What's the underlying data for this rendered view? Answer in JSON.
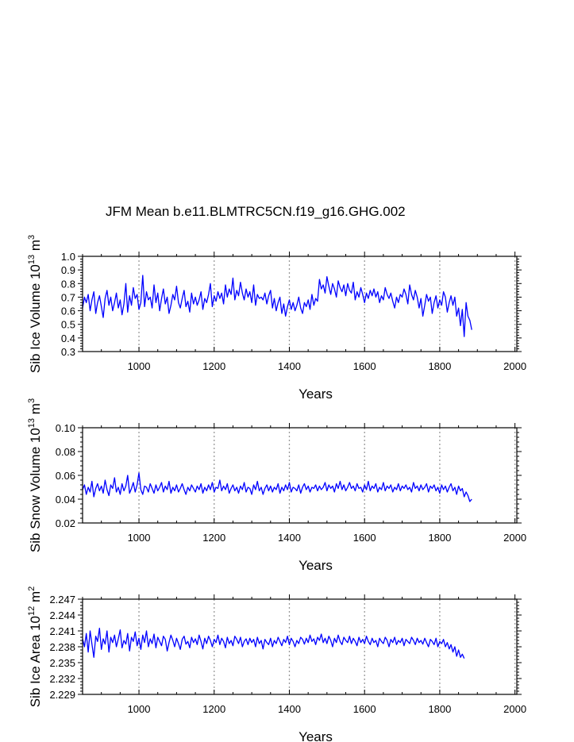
{
  "title": "JFM Mean b.e11.BLMTRC5CN.f19_g16.GHG.002",
  "colors": {
    "series": "#0000ff",
    "axis": "#000000",
    "grid": "#999999"
  },
  "chart_data": [
    {
      "type": "line",
      "xlabel": "Years",
      "ylabel": {
        "prefix": "Sib Ice Volume 10",
        "exponent": "13",
        "unit": "m",
        "unit_exponent": "3"
      },
      "xlim": [
        850,
        2005
      ],
      "ylim": [
        0.3,
        1.0
      ],
      "xticks": [
        1000,
        1200,
        1400,
        1600,
        1800,
        2000
      ],
      "yticks": [
        0.3,
        0.4,
        0.5,
        0.6,
        0.7,
        0.8,
        0.9,
        1.0
      ],
      "ytick_labels": [
        "0.3",
        "0.4",
        "0.5",
        "0.6",
        "0.7",
        "0.8",
        "0.9",
        "1.0"
      ],
      "grid_x": [
        1000,
        1200,
        1400,
        1600,
        1800,
        2000
      ],
      "series": [
        {
          "name": "Sib Ice Volume",
          "x_start": 850,
          "x_step": 5,
          "values": [
            0.62,
            0.7,
            0.66,
            0.72,
            0.6,
            0.68,
            0.74,
            0.58,
            0.66,
            0.71,
            0.63,
            0.55,
            0.69,
            0.75,
            0.64,
            0.7,
            0.6,
            0.66,
            0.73,
            0.62,
            0.68,
            0.57,
            0.65,
            0.8,
            0.59,
            0.71,
            0.64,
            0.77,
            0.69,
            0.72,
            0.61,
            0.66,
            0.86,
            0.63,
            0.74,
            0.68,
            0.7,
            0.62,
            0.79,
            0.66,
            0.73,
            0.6,
            0.69,
            0.76,
            0.65,
            0.7,
            0.58,
            0.64,
            0.72,
            0.68,
            0.78,
            0.66,
            0.62,
            0.69,
            0.75,
            0.63,
            0.67,
            0.59,
            0.73,
            0.65,
            0.7,
            0.64,
            0.68,
            0.74,
            0.61,
            0.69,
            0.66,
            0.72,
            0.8,
            0.63,
            0.71,
            0.67,
            0.74,
            0.69,
            0.73,
            0.65,
            0.79,
            0.7,
            0.76,
            0.72,
            0.84,
            0.68,
            0.75,
            0.71,
            0.81,
            0.73,
            0.68,
            0.76,
            0.7,
            0.74,
            0.66,
            0.79,
            0.64,
            0.72,
            0.69,
            0.7,
            0.68,
            0.73,
            0.65,
            0.71,
            0.75,
            0.62,
            0.69,
            0.6,
            0.66,
            0.7,
            0.58,
            0.65,
            0.56,
            0.63,
            0.68,
            0.61,
            0.66,
            0.6,
            0.64,
            0.7,
            0.62,
            0.58,
            0.66,
            0.63,
            0.68,
            0.61,
            0.72,
            0.64,
            0.69,
            0.67,
            0.83,
            0.76,
            0.79,
            0.73,
            0.85,
            0.78,
            0.72,
            0.8,
            0.76,
            0.7,
            0.82,
            0.77,
            0.74,
            0.79,
            0.71,
            0.8,
            0.75,
            0.73,
            0.81,
            0.68,
            0.74,
            0.7,
            0.77,
            0.72,
            0.66,
            0.73,
            0.69,
            0.75,
            0.71,
            0.76,
            0.7,
            0.74,
            0.66,
            0.71,
            0.68,
            0.77,
            0.72,
            0.69,
            0.73,
            0.67,
            0.62,
            0.7,
            0.66,
            0.72,
            0.7,
            0.76,
            0.72,
            0.65,
            0.79,
            0.72,
            0.68,
            0.75,
            0.7,
            0.62,
            0.69,
            0.56,
            0.64,
            0.72,
            0.67,
            0.7,
            0.58,
            0.66,
            0.71,
            0.62,
            0.68,
            0.64,
            0.74,
            0.7,
            0.59,
            0.66,
            0.71,
            0.64,
            0.7,
            0.56,
            0.62,
            0.49,
            0.61,
            0.41,
            0.66,
            0.56,
            0.53,
            0.46
          ]
        }
      ]
    },
    {
      "type": "line",
      "xlabel": "Years",
      "ylabel": {
        "prefix": "Sib Snow Volume 10",
        "exponent": "13",
        "unit": "m",
        "unit_exponent": "3"
      },
      "xlim": [
        850,
        2005
      ],
      "ylim": [
        0.02,
        0.1
      ],
      "xticks": [
        1000,
        1200,
        1400,
        1600,
        1800,
        2000
      ],
      "yticks": [
        0.02,
        0.04,
        0.06,
        0.08,
        0.1
      ],
      "ytick_labels": [
        "0.02",
        "0.04",
        "0.06",
        "0.08",
        "0.10"
      ],
      "grid_x": [
        1000,
        1200,
        1400,
        1600,
        1800,
        2000
      ],
      "series": [
        {
          "name": "Sib Snow Volume",
          "x_start": 850,
          "x_step": 5,
          "values": [
            0.048,
            0.052,
            0.044,
            0.05,
            0.046,
            0.055,
            0.042,
            0.049,
            0.053,
            0.047,
            0.051,
            0.045,
            0.056,
            0.048,
            0.043,
            0.052,
            0.049,
            0.058,
            0.046,
            0.05,
            0.044,
            0.053,
            0.047,
            0.051,
            0.06,
            0.045,
            0.049,
            0.054,
            0.046,
            0.052,
            0.062,
            0.048,
            0.044,
            0.051,
            0.05,
            0.046,
            0.053,
            0.049,
            0.045,
            0.052,
            0.047,
            0.05,
            0.054,
            0.046,
            0.051,
            0.048,
            0.055,
            0.045,
            0.05,
            0.047,
            0.052,
            0.046,
            0.049,
            0.053,
            0.048,
            0.044,
            0.05,
            0.047,
            0.052,
            0.049,
            0.046,
            0.051,
            0.048,
            0.053,
            0.045,
            0.05,
            0.047,
            0.052,
            0.048,
            0.054,
            0.046,
            0.05,
            0.049,
            0.056,
            0.047,
            0.051,
            0.048,
            0.053,
            0.045,
            0.049,
            0.052,
            0.047,
            0.05,
            0.045,
            0.051,
            0.048,
            0.054,
            0.046,
            0.05,
            0.049,
            0.044,
            0.052,
            0.048,
            0.055,
            0.047,
            0.05,
            0.044,
            0.049,
            0.052,
            0.047,
            0.051,
            0.046,
            0.05,
            0.048,
            0.053,
            0.045,
            0.05,
            0.047,
            0.052,
            0.048,
            0.054,
            0.046,
            0.05,
            0.049,
            0.047,
            0.052,
            0.045,
            0.05,
            0.053,
            0.048,
            0.051,
            0.046,
            0.05,
            0.049,
            0.052,
            0.047,
            0.051,
            0.048,
            0.05,
            0.054,
            0.047,
            0.052,
            0.049,
            0.051,
            0.046,
            0.053,
            0.049,
            0.055,
            0.048,
            0.052,
            0.047,
            0.05,
            0.054,
            0.049,
            0.051,
            0.047,
            0.053,
            0.049,
            0.05,
            0.046,
            0.052,
            0.048,
            0.055,
            0.047,
            0.051,
            0.049,
            0.053,
            0.046,
            0.05,
            0.048,
            0.054,
            0.047,
            0.051,
            0.049,
            0.052,
            0.046,
            0.05,
            0.048,
            0.053,
            0.047,
            0.051,
            0.049,
            0.052,
            0.048,
            0.05,
            0.046,
            0.054,
            0.049,
            0.051,
            0.047,
            0.052,
            0.048,
            0.05,
            0.053,
            0.046,
            0.051,
            0.049,
            0.052,
            0.047,
            0.05,
            0.045,
            0.052,
            0.048,
            0.051,
            0.046,
            0.05,
            0.053,
            0.047,
            0.05,
            0.044,
            0.051,
            0.047,
            0.049,
            0.042,
            0.046,
            0.043,
            0.038,
            0.04
          ]
        }
      ]
    },
    {
      "type": "line",
      "xlabel": "Years",
      "ylabel": {
        "prefix": "Sib Ice Area 10",
        "exponent": "12",
        "unit": "m",
        "unit_exponent": "2"
      },
      "xlim": [
        850,
        2005
      ],
      "ylim": [
        2.229,
        2.247
      ],
      "xticks": [
        1000,
        1200,
        1400,
        1600,
        1800,
        2000
      ],
      "yticks": [
        2.229,
        2.232,
        2.235,
        2.238,
        2.241,
        2.244,
        2.247
      ],
      "ytick_labels": [
        "2.229",
        "2.232",
        "2.235",
        "2.238",
        "2.241",
        "2.244",
        "2.247"
      ],
      "grid_x": [
        1000,
        1200,
        1400,
        1600,
        1800,
        2000
      ],
      "series": [
        {
          "name": "Sib Ice Area",
          "x_start": 850,
          "x_step": 5,
          "values": [
            2.2395,
            2.238,
            2.2405,
            2.237,
            2.241,
            2.2385,
            2.236,
            2.24,
            2.239,
            2.2415,
            2.2375,
            2.2395,
            2.2385,
            2.241,
            2.237,
            2.2398,
            2.2388,
            2.2402,
            2.238,
            2.2395,
            2.2412,
            2.2378,
            2.2392,
            2.2385,
            2.2405,
            2.2372,
            2.2398,
            2.239,
            2.2408,
            2.2382,
            2.2396,
            2.2375,
            2.2402,
            2.2388,
            2.241,
            2.238,
            2.2395,
            2.2386,
            2.2404,
            2.2378,
            2.2398,
            2.239,
            2.2382,
            2.24,
            2.2394,
            2.2372,
            2.2388,
            2.2402,
            2.2392,
            2.238,
            2.2396,
            2.2386,
            2.2375,
            2.2394,
            2.24,
            2.2385,
            2.239,
            2.2378,
            2.2398,
            2.2388,
            2.2395,
            2.2384,
            2.2402,
            2.239,
            2.2376,
            2.2396,
            2.2386,
            2.24,
            2.2392,
            2.238,
            2.2394,
            2.2388,
            2.2402,
            2.2384,
            2.2396,
            2.239,
            2.2378,
            2.2398,
            2.2386,
            2.2392,
            2.2382,
            2.24,
            2.2394,
            2.2386,
            2.2398,
            2.238,
            2.239,
            2.2395,
            2.2384,
            2.2396,
            2.2388,
            2.2394,
            2.238,
            2.2398,
            2.2386,
            2.2392,
            2.2376,
            2.2394,
            2.2388,
            2.2384,
            2.2396,
            2.238,
            2.2392,
            2.2386,
            2.2398,
            2.239,
            2.2382,
            2.2394,
            2.2388,
            2.24,
            2.2384,
            2.2396,
            2.239,
            2.238,
            2.2392,
            2.2386,
            2.2398,
            2.2394,
            2.2385,
            2.2396,
            2.2388,
            2.2402,
            2.239,
            2.2395,
            2.2384,
            2.2398,
            2.2392,
            2.2404,
            2.2388,
            2.2396,
            2.2386,
            2.24,
            2.2392,
            2.238,
            2.2396,
            2.2388,
            2.2402,
            2.239,
            2.2384,
            2.2398,
            2.2392,
            2.2388,
            2.24,
            2.2386,
            2.2396,
            2.239,
            2.2382,
            2.2398,
            2.2388,
            2.2394,
            2.2386,
            2.24,
            2.239,
            2.2384,
            2.2396,
            2.2388,
            2.2392,
            2.238,
            2.2396,
            2.239,
            2.2386,
            2.2398,
            2.2392,
            2.238,
            2.2394,
            2.2388,
            2.2398,
            2.2384,
            2.2392,
            2.2388,
            2.2396,
            2.2382,
            2.2394,
            2.239,
            2.2386,
            2.2398,
            2.2392,
            2.2384,
            2.2396,
            2.2388,
            2.2392,
            2.2385,
            2.2396,
            2.2388,
            2.238,
            2.2394,
            2.239,
            2.2384,
            2.2396,
            2.238,
            2.239,
            2.2386,
            2.2394,
            2.238,
            2.2388,
            2.2376,
            2.2384,
            2.237,
            2.238,
            2.2362,
            2.2374,
            2.236,
            2.2366,
            2.2358
          ]
        }
      ]
    }
  ]
}
